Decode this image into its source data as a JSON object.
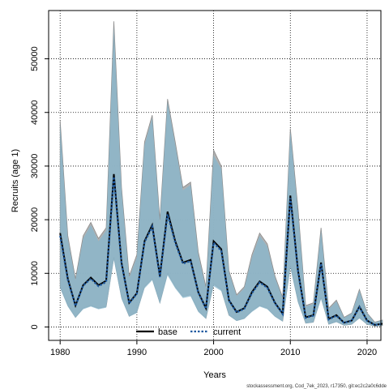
{
  "chart_data": {
    "type": "line",
    "xlabel": "Years",
    "ylabel": "Recruits (age 1)",
    "xlim": [
      1978.5,
      2021.8
    ],
    "ylim": [
      -2500,
      59000
    ],
    "xticks": [
      1980,
      1990,
      2000,
      2010,
      2020
    ],
    "yticks": [
      0,
      10000,
      20000,
      30000,
      40000,
      50000
    ],
    "grid": true,
    "legend_position": "bottom-center",
    "x": [
      1980,
      1981,
      1982,
      1983,
      1984,
      1985,
      1986,
      1987,
      1988,
      1989,
      1990,
      1991,
      1992,
      1993,
      1994,
      1995,
      1996,
      1997,
      1998,
      1999,
      2000,
      2001,
      2002,
      2003,
      2004,
      2005,
      2006,
      2007,
      2008,
      2009,
      2010,
      2011,
      2012,
      2013,
      2014,
      2015,
      2016,
      2017,
      2018,
      2019,
      2020,
      2021,
      2022
    ],
    "series": [
      {
        "name": "base",
        "style": "solid",
        "color": "#000000",
        "values": [
          17500,
          9000,
          4000,
          7800,
          9200,
          7800,
          8600,
          28500,
          12000,
          4500,
          6300,
          16000,
          19000,
          9500,
          21500,
          16000,
          12000,
          12500,
          6500,
          3500,
          16000,
          14500,
          5000,
          2800,
          3500,
          6500,
          8500,
          7500,
          4500,
          2500,
          24500,
          10500,
          1800,
          2200,
          12000,
          1500,
          2200,
          800,
          1200,
          3800,
          1200,
          400,
          600
        ],
        "lower": [
          7500,
          4000,
          1800,
          3500,
          4000,
          3500,
          3800,
          13000,
          5500,
          2000,
          2800,
          7500,
          9000,
          4500,
          10000,
          7500,
          5700,
          6000,
          3000,
          1600,
          8000,
          7000,
          2200,
          1200,
          1600,
          3000,
          4000,
          3500,
          2000,
          1100,
          11500,
          4800,
          700,
          900,
          5500,
          500,
          1000,
          300,
          500,
          1700,
          500,
          150,
          250
        ],
        "upper": [
          38500,
          17000,
          9000,
          17000,
          19500,
          16500,
          18500,
          57000,
          26000,
          9500,
          13500,
          34500,
          39500,
          20000,
          42500,
          34500,
          26000,
          27000,
          14000,
          7500,
          33000,
          30000,
          10500,
          6000,
          7500,
          13500,
          17500,
          15500,
          9500,
          5500,
          37000,
          22000,
          4000,
          4500,
          18500,
          3500,
          5000,
          1800,
          2600,
          7000,
          2600,
          900,
          1300
        ]
      },
      {
        "name": "current",
        "style": "dotted",
        "color": "#1f5aa0",
        "values": [
          17000,
          8800,
          3900,
          7700,
          9000,
          7600,
          8400,
          28000,
          11800,
          4400,
          6200,
          15800,
          18700,
          9300,
          21000,
          15700,
          11800,
          12300,
          6400,
          3400,
          15700,
          14200,
          4900,
          2700,
          3400,
          6300,
          8300,
          7300,
          4400,
          2400,
          24000,
          10300,
          1700,
          2100,
          11800,
          1400,
          2100,
          750,
          1150,
          3700,
          1150,
          380,
          580
        ],
        "lower": [
          7200,
          3800,
          1700,
          3300,
          3800,
          3300,
          3600,
          12500,
          5200,
          1900,
          2600,
          7200,
          8700,
          4300,
          9600,
          7200,
          5400,
          5700,
          2800,
          1500,
          7600,
          6700,
          2100,
          1100,
          1500,
          2800,
          3800,
          3300,
          1900,
          1000,
          11000,
          4500,
          650,
          850,
          5200,
          450,
          900,
          280,
          450,
          1600,
          450,
          140,
          230
        ],
        "upper": [
          38000,
          16500,
          8700,
          16500,
          19000,
          16000,
          18000,
          56000,
          25500,
          9200,
          13000,
          34000,
          39000,
          19500,
          42000,
          34000,
          25500,
          26500,
          13500,
          7200,
          32000,
          29500,
          10200,
          5800,
          7200,
          13000,
          17000,
          15000,
          9200,
          5300,
          36500,
          21500,
          3800,
          4300,
          18000,
          3300,
          4800,
          1700,
          2500,
          6800,
          2500,
          850,
          1250
        ]
      }
    ]
  },
  "legend": {
    "items": [
      "base",
      "current"
    ]
  },
  "footer_text": "stockassessment.org, Cod_7ek_2023, r17350, git:ec2c2a0c6dde"
}
